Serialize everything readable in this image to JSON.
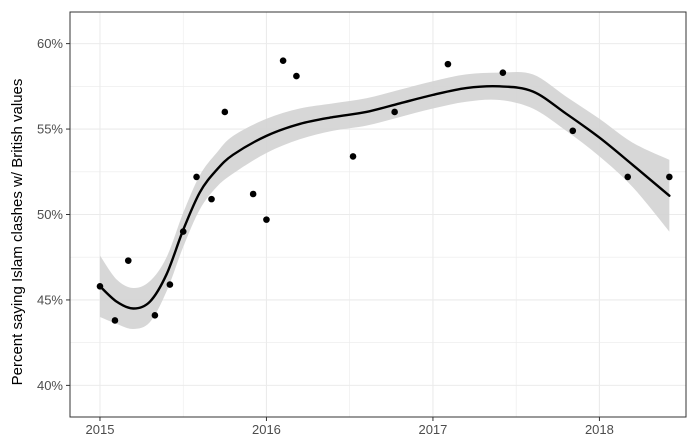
{
  "chart_data": {
    "type": "scatter",
    "title": "",
    "xlabel": "",
    "ylabel": "Percent saying Islam clashes w/ British values",
    "xlim": [
      2014.82,
      2018.52
    ],
    "ylim": [
      38.15,
      61.85
    ],
    "x_ticks": [
      2015,
      2016,
      2017,
      2018
    ],
    "x_tick_labels": [
      "2015",
      "2016",
      "2017",
      "2018"
    ],
    "y_ticks": [
      40,
      45,
      50,
      55,
      60
    ],
    "y_tick_labels": [
      "40%",
      "45%",
      "50%",
      "55%",
      "60%"
    ],
    "grid": true,
    "legend": "none",
    "colors": {
      "points": "#000000",
      "trend_line": "#000000",
      "ribbon": "#d3d3d3",
      "grid": "#ebebeb",
      "panel_border": "#333333"
    },
    "points": [
      {
        "x": 2015.0,
        "y": 45.8
      },
      {
        "x": 2015.09,
        "y": 43.8
      },
      {
        "x": 2015.17,
        "y": 47.3
      },
      {
        "x": 2015.33,
        "y": 44.1
      },
      {
        "x": 2015.42,
        "y": 45.9
      },
      {
        "x": 2015.5,
        "y": 49.0
      },
      {
        "x": 2015.58,
        "y": 52.2
      },
      {
        "x": 2015.67,
        "y": 50.9
      },
      {
        "x": 2015.75,
        "y": 56.0
      },
      {
        "x": 2015.92,
        "y": 51.2
      },
      {
        "x": 2016.0,
        "y": 49.7
      },
      {
        "x": 2016.1,
        "y": 59.0
      },
      {
        "x": 2016.18,
        "y": 58.1
      },
      {
        "x": 2016.52,
        "y": 53.4
      },
      {
        "x": 2016.77,
        "y": 56.0
      },
      {
        "x": 2017.09,
        "y": 58.8
      },
      {
        "x": 2017.42,
        "y": 58.3
      },
      {
        "x": 2017.84,
        "y": 54.9
      },
      {
        "x": 2018.17,
        "y": 52.2
      },
      {
        "x": 2018.42,
        "y": 52.2
      }
    ],
    "smooth": {
      "x": [
        2015.0,
        2015.1,
        2015.2,
        2015.3,
        2015.4,
        2015.5,
        2015.6,
        2015.7,
        2015.8,
        2016.0,
        2016.2,
        2016.4,
        2016.6,
        2016.8,
        2017.0,
        2017.2,
        2017.4,
        2017.6,
        2017.8,
        2018.0,
        2018.2,
        2018.42
      ],
      "y": [
        45.8,
        44.9,
        44.5,
        44.9,
        46.5,
        49.1,
        51.3,
        52.6,
        53.5,
        54.6,
        55.3,
        55.7,
        56.0,
        56.5,
        57.0,
        57.4,
        57.5,
        57.2,
        55.9,
        54.5,
        52.9,
        51.1
      ],
      "lower": [
        44.0,
        43.6,
        43.3,
        43.7,
        45.5,
        48.1,
        50.3,
        51.6,
        52.4,
        53.6,
        54.4,
        54.9,
        55.2,
        55.7,
        56.2,
        56.6,
        56.7,
        56.2,
        54.9,
        53.4,
        51.6,
        49.0
      ],
      "upper": [
        47.6,
        46.2,
        45.7,
        46.1,
        47.5,
        50.1,
        52.3,
        53.6,
        54.6,
        55.6,
        56.2,
        56.5,
        56.8,
        57.3,
        57.8,
        58.2,
        58.3,
        58.2,
        56.9,
        55.6,
        54.2,
        53.2
      ]
    }
  }
}
